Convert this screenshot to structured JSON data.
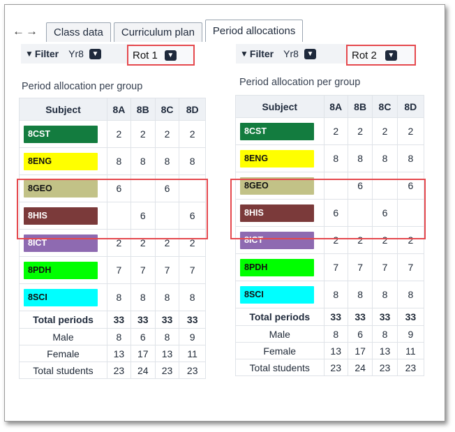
{
  "nav": {
    "back_icon": "arrow-left-icon",
    "forward_icon": "arrow-right-icon"
  },
  "tabs": [
    {
      "label": "Class data"
    },
    {
      "label": "Curriculum plan"
    },
    {
      "label": "Period allocations"
    }
  ],
  "filter_label": "Filter",
  "left": {
    "year": "Yr8",
    "rotation": "Rot 1",
    "title": "Period allocation per group",
    "headers": [
      "Subject",
      "8A",
      "8B",
      "8C",
      "8D"
    ],
    "rows": [
      {
        "subject": "8CST",
        "color": "#137c3f",
        "text_color": "#ffffff",
        "values": [
          "2",
          "2",
          "2",
          "2"
        ]
      },
      {
        "subject": "8ENG",
        "color": "#ffff00",
        "text_color": "#111111",
        "values": [
          "8",
          "8",
          "8",
          "8"
        ]
      },
      {
        "subject": "8GEO",
        "color": "#c2c287",
        "text_color": "#111111",
        "values": [
          "6",
          "",
          "6",
          ""
        ]
      },
      {
        "subject": "8HIS",
        "color": "#7b3a3a",
        "text_color": "#ffffff",
        "values": [
          "",
          "6",
          "",
          "6"
        ]
      },
      {
        "subject": "8ICT",
        "color": "#8e6ab1",
        "text_color": "#ffffff",
        "values": [
          "2",
          "2",
          "2",
          "2"
        ]
      },
      {
        "subject": "8PDH",
        "color": "#00ff00",
        "text_color": "#111111",
        "values": [
          "7",
          "7",
          "7",
          "7"
        ]
      },
      {
        "subject": "8SCI",
        "color": "#00ffff",
        "text_color": "#111111",
        "values": [
          "8",
          "8",
          "8",
          "8"
        ]
      }
    ],
    "totals": [
      {
        "label": "Total periods",
        "values": [
          "33",
          "33",
          "33",
          "33"
        ]
      },
      {
        "label": "Male",
        "values": [
          "8",
          "6",
          "8",
          "9"
        ]
      },
      {
        "label": "Female",
        "values": [
          "13",
          "17",
          "13",
          "11"
        ]
      },
      {
        "label": "Total students",
        "values": [
          "23",
          "24",
          "23",
          "23"
        ]
      }
    ]
  },
  "right": {
    "year": "Yr8",
    "rotation": "Rot 2",
    "title": "Period allocation per group",
    "headers": [
      "Subject",
      "8A",
      "8B",
      "8C",
      "8D"
    ],
    "rows": [
      {
        "subject": "8CST",
        "color": "#137c3f",
        "text_color": "#ffffff",
        "values": [
          "2",
          "2",
          "2",
          "2"
        ]
      },
      {
        "subject": "8ENG",
        "color": "#ffff00",
        "text_color": "#111111",
        "values": [
          "8",
          "8",
          "8",
          "8"
        ]
      },
      {
        "subject": "8GEO",
        "color": "#c2c287",
        "text_color": "#111111",
        "values": [
          "",
          "6",
          "",
          "6"
        ]
      },
      {
        "subject": "8HIS",
        "color": "#7b3a3a",
        "text_color": "#ffffff",
        "values": [
          "6",
          "",
          "6",
          ""
        ]
      },
      {
        "subject": "8ICT",
        "color": "#8e6ab1",
        "text_color": "#ffffff",
        "values": [
          "2",
          "2",
          "2",
          "2"
        ]
      },
      {
        "subject": "8PDH",
        "color": "#00ff00",
        "text_color": "#111111",
        "values": [
          "7",
          "7",
          "7",
          "7"
        ]
      },
      {
        "subject": "8SCI",
        "color": "#00ffff",
        "text_color": "#111111",
        "values": [
          "8",
          "8",
          "8",
          "8"
        ]
      }
    ],
    "totals": [
      {
        "label": "Total periods",
        "values": [
          "33",
          "33",
          "33",
          "33"
        ]
      },
      {
        "label": "Male",
        "values": [
          "8",
          "6",
          "8",
          "9"
        ]
      },
      {
        "label": "Female",
        "values": [
          "13",
          "17",
          "13",
          "11"
        ]
      },
      {
        "label": "Total students",
        "values": [
          "23",
          "24",
          "23",
          "23"
        ]
      }
    ]
  },
  "highlight_color": "#e5484d"
}
